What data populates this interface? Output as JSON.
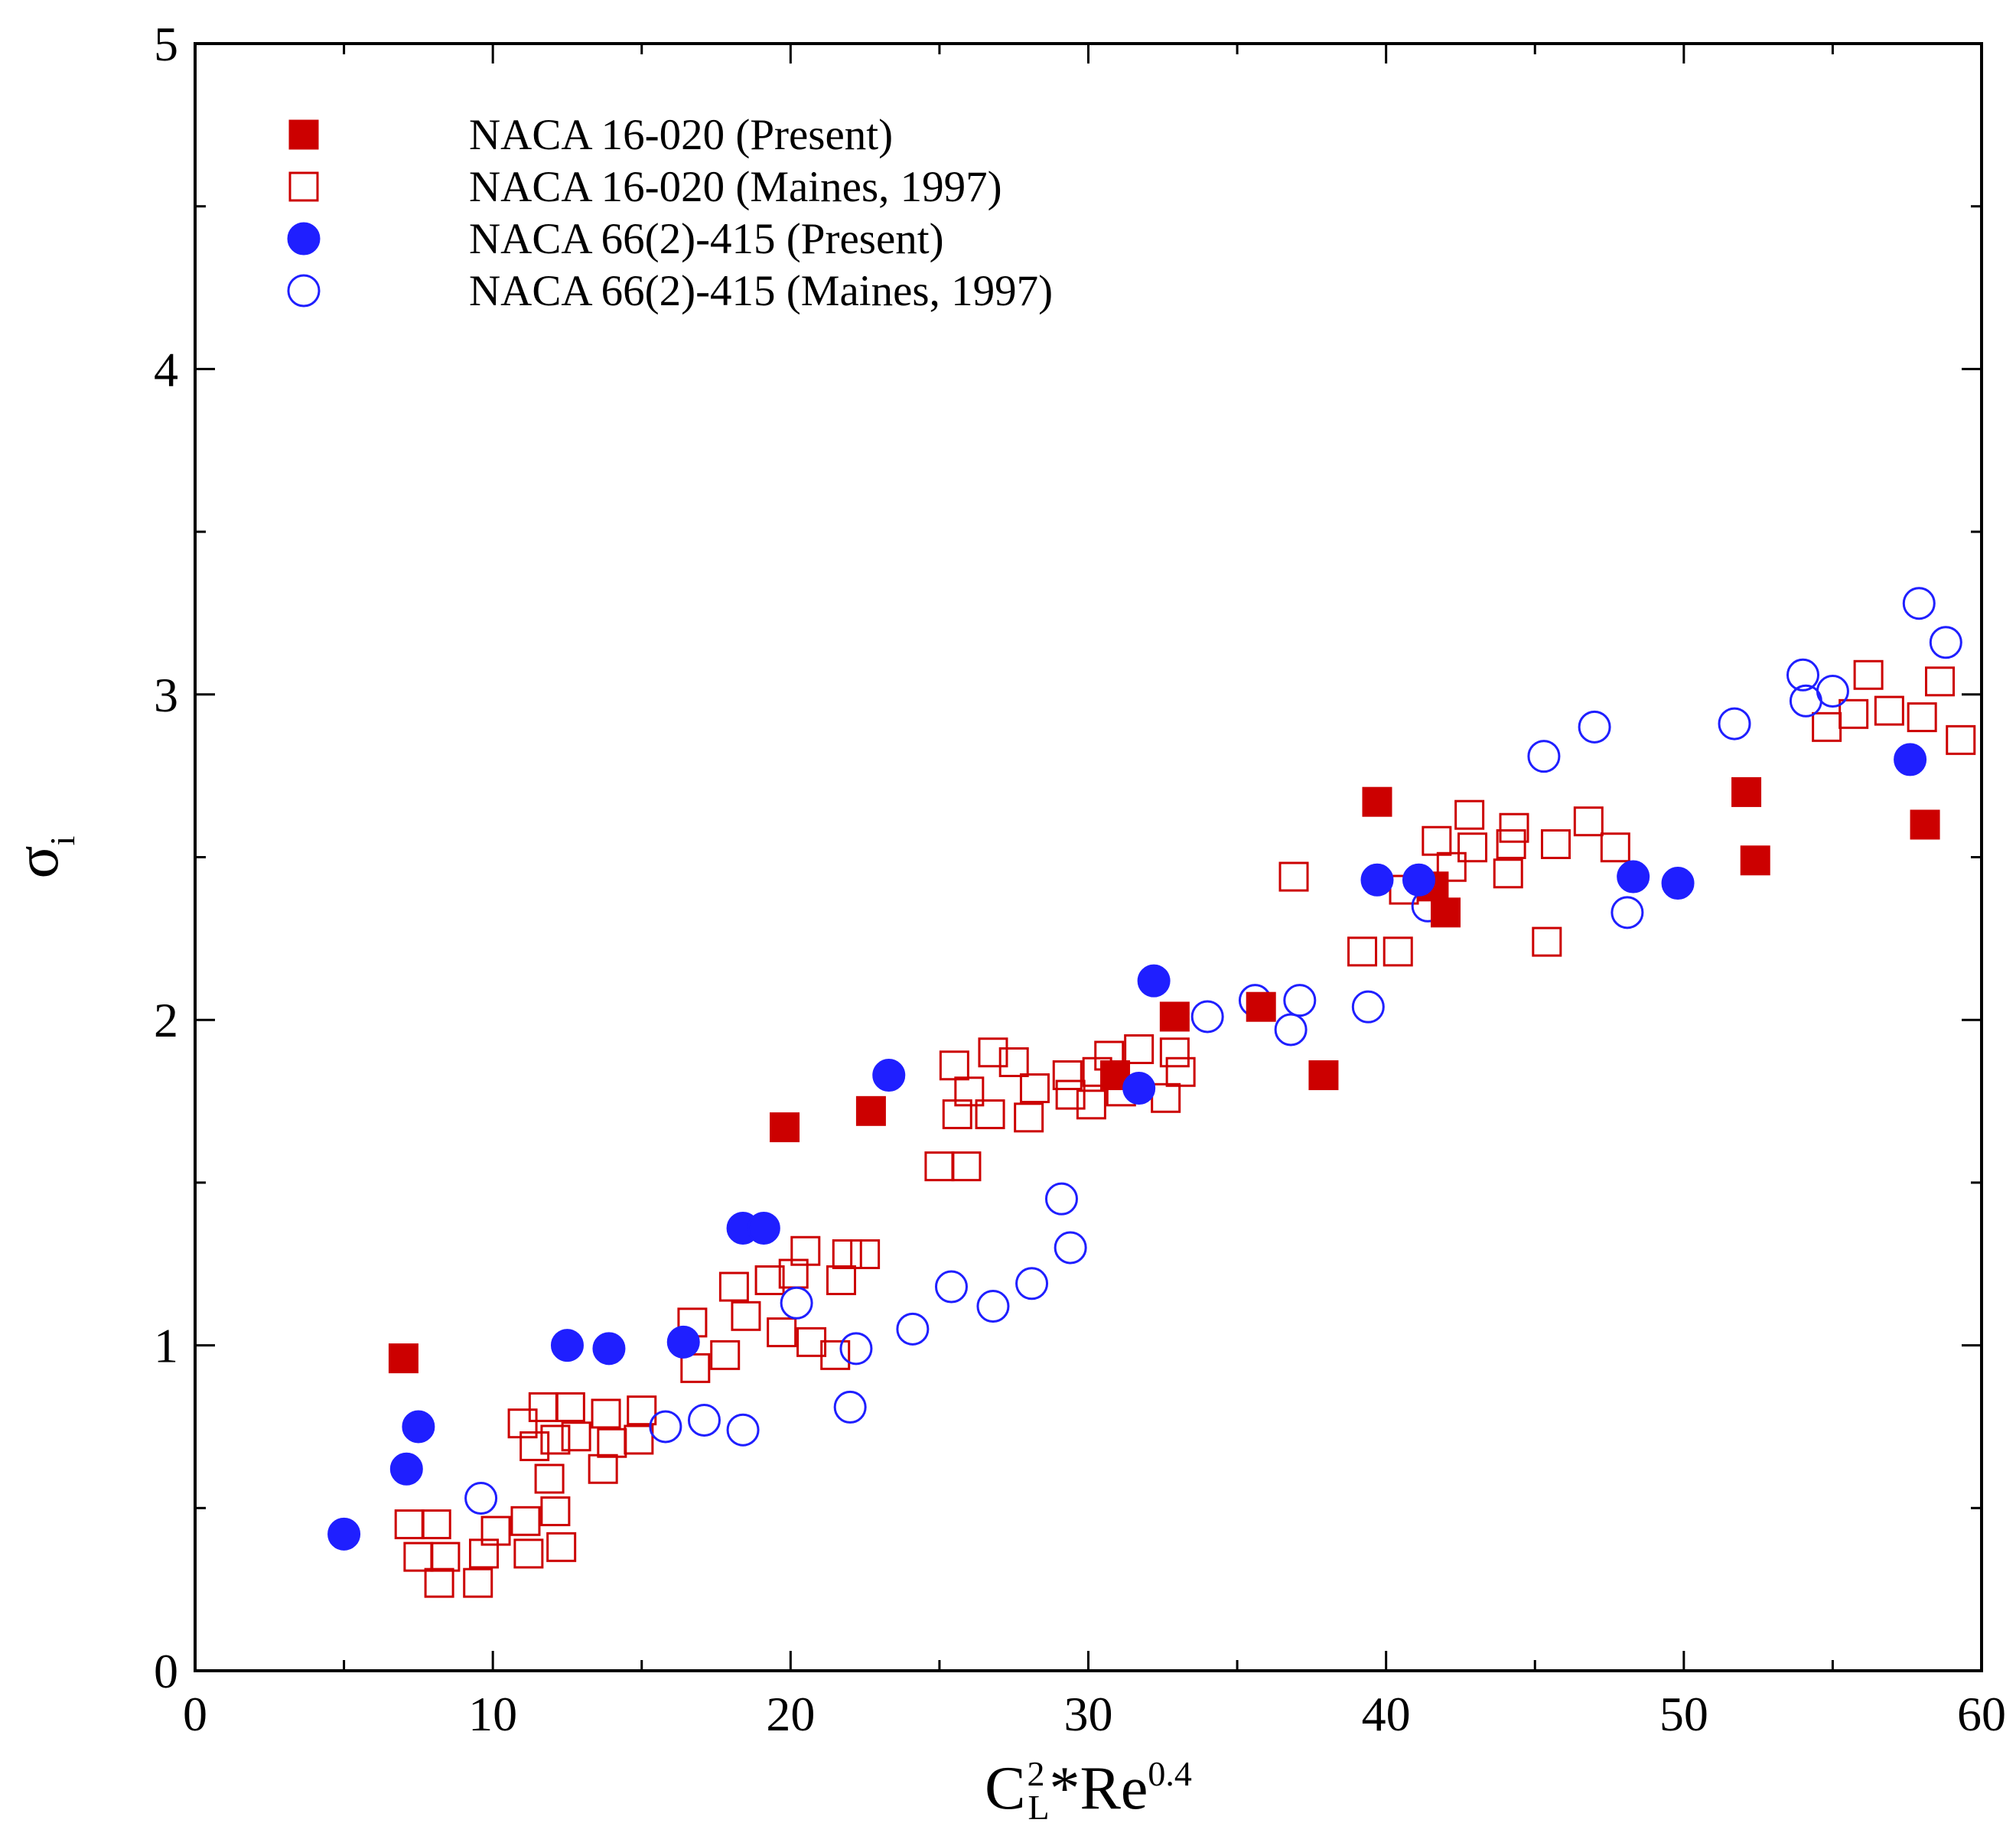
{
  "chart_data": {
    "type": "scatter",
    "title": "",
    "xlabel": {
      "base": "C",
      "base_sub": "L",
      "base_sup": "2",
      "mid": "*Re",
      "mid_sup": "0.4"
    },
    "ylabel": {
      "base": "σ",
      "sub": "i"
    },
    "xlim": [
      0,
      60
    ],
    "ylim": [
      0,
      5
    ],
    "x_major_ticks": [
      0,
      10,
      20,
      30,
      40,
      50,
      60
    ],
    "x_tick_labels": [
      "0",
      "10",
      "20",
      "30",
      "40",
      "50",
      "60"
    ],
    "x_minor_ticks": [
      5,
      15,
      25,
      35,
      45,
      55
    ],
    "y_major_ticks": [
      0,
      1,
      2,
      3,
      4,
      5
    ],
    "y_tick_labels": [
      "0",
      "1",
      "2",
      "3",
      "4",
      "5"
    ],
    "y_minor_ticks": [
      0.5,
      1.5,
      2.5,
      3.5,
      4.5
    ],
    "grid": false,
    "legend_position": "top-left",
    "series": [
      {
        "name": "NACA 16-020 (Present)",
        "marker": "square",
        "filled": true,
        "color": "#cc0000",
        "points": [
          [
            7.0,
            0.96
          ],
          [
            19.8,
            1.67
          ],
          [
            22.7,
            1.72
          ],
          [
            30.9,
            1.83
          ],
          [
            32.9,
            2.01
          ],
          [
            35.8,
            2.04
          ],
          [
            37.9,
            1.83
          ],
          [
            39.7,
            2.67
          ],
          [
            41.6,
            2.41
          ],
          [
            42.0,
            2.33
          ],
          [
            52.1,
            2.7
          ],
          [
            52.4,
            2.49
          ],
          [
            58.1,
            2.6
          ]
        ]
      },
      {
        "name": "NACA 16-020 (Maines, 1997)",
        "marker": "square",
        "filled": false,
        "color": "#cc0000",
        "points": [
          [
            7.2,
            0.45
          ],
          [
            7.5,
            0.35
          ],
          [
            8.1,
            0.45
          ],
          [
            8.2,
            0.27
          ],
          [
            8.4,
            0.35
          ],
          [
            9.5,
            0.27
          ],
          [
            9.7,
            0.36
          ],
          [
            10.1,
            0.43
          ],
          [
            11.0,
            0.76
          ],
          [
            11.1,
            0.46
          ],
          [
            11.2,
            0.36
          ],
          [
            11.4,
            0.69
          ],
          [
            11.7,
            0.81
          ],
          [
            11.9,
            0.59
          ],
          [
            12.1,
            0.71
          ],
          [
            12.1,
            0.49
          ],
          [
            12.3,
            0.38
          ],
          [
            12.6,
            0.81
          ],
          [
            12.8,
            0.72
          ],
          [
            13.7,
            0.62
          ],
          [
            13.8,
            0.79
          ],
          [
            14.0,
            0.7
          ],
          [
            14.9,
            0.71
          ],
          [
            15.0,
            0.8
          ],
          [
            16.7,
            1.07
          ],
          [
            16.8,
            0.93
          ],
          [
            17.8,
            0.97
          ],
          [
            18.1,
            1.18
          ],
          [
            18.5,
            1.09
          ],
          [
            19.3,
            1.2
          ],
          [
            19.7,
            1.04
          ],
          [
            20.1,
            1.22
          ],
          [
            20.5,
            1.29
          ],
          [
            20.7,
            1.01
          ],
          [
            21.5,
            0.97
          ],
          [
            21.7,
            1.2
          ],
          [
            21.9,
            1.28
          ],
          [
            22.5,
            1.28
          ],
          [
            25.0,
            1.55
          ],
          [
            25.5,
            1.86
          ],
          [
            25.6,
            1.71
          ],
          [
            25.9,
            1.55
          ],
          [
            26.0,
            1.78
          ],
          [
            26.7,
            1.71
          ],
          [
            26.8,
            1.9
          ],
          [
            27.5,
            1.87
          ],
          [
            28.0,
            1.7
          ],
          [
            28.2,
            1.79
          ],
          [
            29.3,
            1.83
          ],
          [
            29.4,
            1.77
          ],
          [
            30.1,
            1.74
          ],
          [
            30.3,
            1.84
          ],
          [
            30.7,
            1.89
          ],
          [
            31.1,
            1.78
          ],
          [
            31.7,
            1.91
          ],
          [
            32.6,
            1.76
          ],
          [
            32.9,
            1.9
          ],
          [
            33.1,
            1.84
          ],
          [
            36.9,
            2.44
          ],
          [
            39.2,
            2.21
          ],
          [
            40.4,
            2.21
          ],
          [
            40.6,
            2.4
          ],
          [
            41.7,
            2.55
          ],
          [
            42.2,
            2.47
          ],
          [
            42.8,
            2.63
          ],
          [
            42.9,
            2.53
          ],
          [
            44.1,
            2.45
          ],
          [
            44.2,
            2.54
          ],
          [
            44.3,
            2.59
          ],
          [
            45.4,
            2.24
          ],
          [
            45.7,
            2.54
          ],
          [
            46.8,
            2.61
          ],
          [
            47.7,
            2.53
          ],
          [
            54.8,
            2.9
          ],
          [
            55.7,
            2.94
          ],
          [
            56.2,
            3.06
          ],
          [
            56.9,
            2.95
          ],
          [
            58.0,
            2.93
          ],
          [
            58.6,
            3.04
          ],
          [
            59.3,
            2.86
          ]
        ]
      },
      {
        "name": "NACA 66(2)-415 (Present)",
        "marker": "circle",
        "filled": true,
        "color": "#1f1fff",
        "points": [
          [
            5.0,
            0.42
          ],
          [
            7.1,
            0.62
          ],
          [
            7.5,
            0.75
          ],
          [
            12.5,
            1.0
          ],
          [
            13.9,
            0.99
          ],
          [
            16.4,
            1.01
          ],
          [
            18.4,
            1.36
          ],
          [
            19.1,
            1.36
          ],
          [
            23.3,
            1.83
          ],
          [
            31.7,
            1.79
          ],
          [
            32.2,
            2.12
          ],
          [
            39.7,
            2.43
          ],
          [
            41.1,
            2.43
          ],
          [
            48.3,
            2.44
          ],
          [
            49.8,
            2.42
          ],
          [
            57.6,
            2.8
          ]
        ]
      },
      {
        "name": "NACA 66(2)-415 (Maines, 1997)",
        "marker": "circle",
        "filled": false,
        "color": "#1f1fff",
        "points": [
          [
            9.6,
            0.53
          ],
          [
            15.8,
            0.75
          ],
          [
            17.1,
            0.77
          ],
          [
            18.4,
            0.74
          ],
          [
            20.2,
            1.13
          ],
          [
            22.0,
            0.81
          ],
          [
            22.2,
            0.99
          ],
          [
            24.1,
            1.05
          ],
          [
            25.4,
            1.18
          ],
          [
            26.8,
            1.12
          ],
          [
            28.1,
            1.19
          ],
          [
            29.1,
            1.45
          ],
          [
            29.4,
            1.3
          ],
          [
            34.0,
            2.01
          ],
          [
            35.6,
            2.06
          ],
          [
            36.8,
            1.97
          ],
          [
            37.1,
            2.06
          ],
          [
            39.4,
            2.04
          ],
          [
            41.4,
            2.35
          ],
          [
            45.3,
            2.81
          ],
          [
            47.0,
            2.9
          ],
          [
            48.1,
            2.33
          ],
          [
            51.7,
            2.91
          ],
          [
            54.0,
            3.06
          ],
          [
            54.1,
            2.98
          ],
          [
            55.0,
            3.01
          ],
          [
            57.9,
            3.28
          ],
          [
            58.8,
            3.16
          ]
        ]
      }
    ]
  }
}
